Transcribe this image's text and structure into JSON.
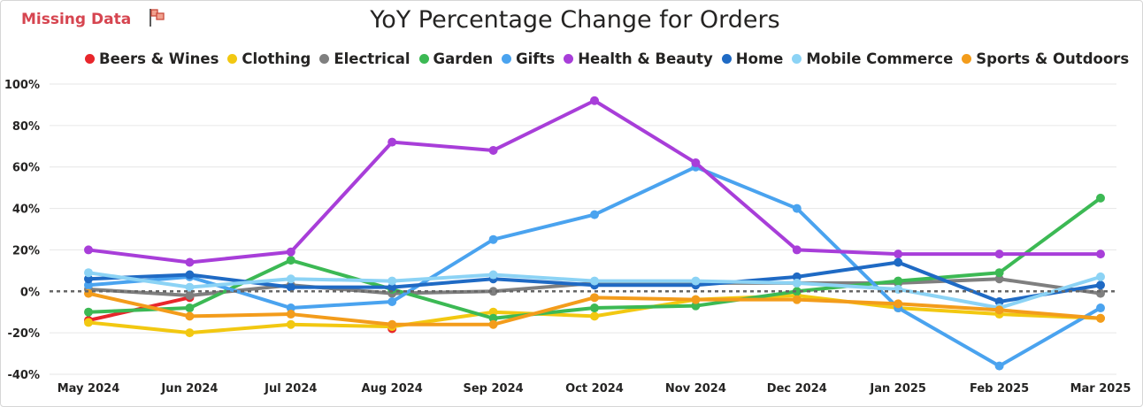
{
  "header": {
    "missing_label": "Missing Data",
    "flag_icon": "flag-icon",
    "title": "YoY Percentage Change for Orders"
  },
  "chart_data": {
    "type": "line",
    "title": "YoY Percentage Change for Orders",
    "xlabel": "",
    "ylabel": "",
    "categories": [
      "May 2024",
      "Jun 2024",
      "Jul 2024",
      "Aug 2024",
      "Sep 2024",
      "Oct 2024",
      "Nov 2024",
      "Dec 2024",
      "Jan 2025",
      "Feb 2025",
      "Mar 2025"
    ],
    "ylim": [
      -40,
      100
    ],
    "yticks": [
      "-40%",
      "-20%",
      "0%",
      "20%",
      "40%",
      "60%",
      "80%",
      "100%"
    ],
    "ytick_values": [
      -40,
      -20,
      0,
      20,
      40,
      60,
      80,
      100
    ],
    "grid": true,
    "legend_position": "top",
    "zero_line": "dotted",
    "series": [
      {
        "name": "Beers & Wines",
        "color": "#e8262b",
        "values": [
          -14,
          -3,
          null,
          -18,
          null,
          null,
          null,
          null,
          null,
          null,
          null
        ]
      },
      {
        "name": "Clothing",
        "color": "#f2c811",
        "values": [
          -15,
          -20,
          -16,
          -17,
          -10,
          -12,
          -4,
          -2,
          -8,
          -11,
          -13
        ]
      },
      {
        "name": "Electrical",
        "color": "#7f7f7f",
        "values": [
          1,
          -2,
          3,
          -1,
          0,
          4,
          4,
          4,
          4,
          6,
          -1
        ]
      },
      {
        "name": "Garden",
        "color": "#3cb954",
        "values": [
          -10,
          -8,
          15,
          1,
          -13,
          -8,
          -7,
          0,
          5,
          9,
          45
        ]
      },
      {
        "name": "Gifts",
        "color": "#4aa3ef",
        "values": [
          3,
          7,
          -8,
          -5,
          25,
          37,
          60,
          40,
          -8,
          -36,
          -8
        ]
      },
      {
        "name": "Health & Beauty",
        "color": "#a83ed9",
        "values": [
          20,
          14,
          19,
          72,
          68,
          92,
          62,
          20,
          18,
          18,
          18
        ]
      },
      {
        "name": "Home",
        "color": "#1f6ac4",
        "values": [
          6,
          8,
          2,
          2,
          6,
          3,
          3,
          7,
          14,
          -5,
          3
        ]
      },
      {
        "name": "Mobile Commerce",
        "color": "#8cd3f5",
        "values": [
          9,
          2,
          6,
          5,
          8,
          5,
          5,
          4,
          1,
          -8,
          7
        ]
      },
      {
        "name": "Sports & Outdoors",
        "color": "#f39c1b",
        "values": [
          -1,
          -12,
          -11,
          -16,
          -16,
          -3,
          -4,
          -4,
          -6,
          -9,
          -13
        ]
      }
    ]
  }
}
